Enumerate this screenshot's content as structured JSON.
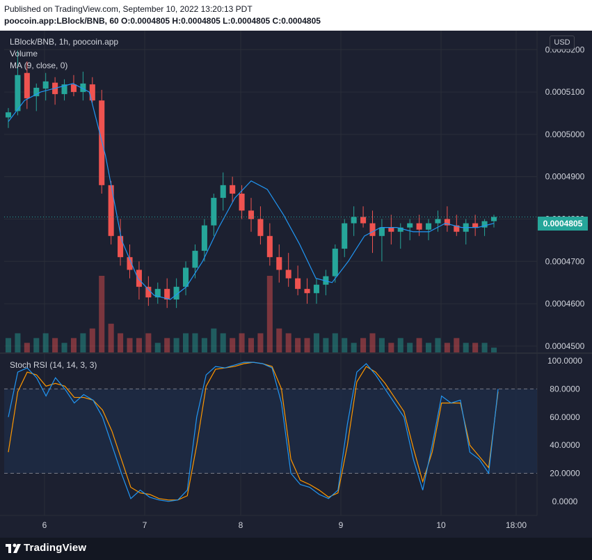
{
  "header": {
    "published": "Published on TradingView.com, September 10, 2022 13:20:13 PDT",
    "symbol_line": "poocoin.app:LBlock/BNB, 60",
    "ohlc": "O:0.0004805 H:0.0004805 L:0.0004805 C:0.0004805"
  },
  "legend": {
    "title": "LBlock/BNB, 1h, poocoin.app",
    "volume": "Volume",
    "ma": "MA (9, close, 0)",
    "rsi": "Stoch RSI (14, 14, 3, 3)"
  },
  "currency_button": "USD",
  "last_price": "0.0004805",
  "footer": {
    "brand": "TradingView"
  },
  "colors": {
    "up": "#26a69a",
    "down": "#ef5350",
    "ma_line": "#2196f3",
    "k_line": "#2196f3",
    "d_line": "#ff9800",
    "background": "#1c2030"
  },
  "chart_data": [
    {
      "type": "candlestick",
      "title": "LBlock/BNB, 1h, poocoin.app",
      "x_tick_labels": [
        "6",
        "7",
        "8",
        "9",
        "10",
        "18:00"
      ],
      "y_tick_labels": [
        "0.0005200",
        "0.0005100",
        "0.0005000",
        "0.0004900",
        "0.0004800",
        "0.0004700",
        "0.0004600",
        "0.0004500"
      ],
      "ylim": [
        0.0004485,
        0.0005235
      ],
      "last_price": 0.0004805,
      "series": [
        {
          "name": "MA (9, close, 0)",
          "values": [
            0.000503,
            0.000508,
            0.00051,
            0.000511,
            0.000512,
            0.00051,
            0.000495,
            0.000475,
            0.000466,
            0.000462,
            0.000461,
            0.000464,
            0.00047,
            0.000478,
            0.000485,
            0.000489,
            0.000487,
            0.000481,
            0.000474,
            0.000466,
            0.000465,
            0.00047,
            0.000476,
            0.000478,
            0.000478,
            0.000477,
            0.000477,
            0.000479,
            0.000478,
            0.000478,
            0.000479
          ]
        }
      ],
      "candles": [
        [
          0.000504,
          0.0005062,
          0.0005015,
          0.0005052
        ],
        [
          0.0005055,
          0.0005198,
          0.0005045,
          0.000514
        ],
        [
          0.0005145,
          0.0005172,
          0.000506,
          0.0005085
        ],
        [
          0.000509,
          0.000512,
          0.0005055,
          0.000511
        ],
        [
          0.0005108,
          0.0005145,
          0.000508,
          0.0005125
        ],
        [
          0.0005122,
          0.0005135,
          0.000507,
          0.0005095
        ],
        [
          0.0005095,
          0.000513,
          0.000508,
          0.0005118
        ],
        [
          0.0005118,
          0.000514,
          0.000509,
          0.00051
        ],
        [
          0.00051,
          0.0005148,
          0.000508,
          0.000512
        ],
        [
          0.0005118,
          0.0005135,
          0.0005075,
          0.000508
        ],
        [
          0.000508,
          0.0005105,
          0.000486,
          0.000488
        ],
        [
          0.000488,
          0.000489,
          0.000474,
          0.000476
        ],
        [
          0.000476,
          0.00048,
          0.000469,
          0.000471
        ],
        [
          0.000471,
          0.000474,
          0.000466,
          0.000468
        ],
        [
          0.000468,
          0.00047,
          0.000461,
          0.000464
        ],
        [
          0.000464,
          0.0004665,
          0.0004595,
          0.0004615
        ],
        [
          0.0004615,
          0.000465,
          0.00046,
          0.0004635
        ],
        [
          0.0004635,
          0.000466,
          0.000459,
          0.000461
        ],
        [
          0.000461,
          0.000466,
          0.000459,
          0.000464
        ],
        [
          0.000464,
          0.00047,
          0.000462,
          0.0004685
        ],
        [
          0.0004685,
          0.000474,
          0.000466,
          0.0004725
        ],
        [
          0.0004725,
          0.00048,
          0.00047,
          0.0004785
        ],
        [
          0.0004785,
          0.000486,
          0.000476,
          0.000485
        ],
        [
          0.000485,
          0.000491,
          0.000482,
          0.000488
        ],
        [
          0.000488,
          0.00049,
          0.000484,
          0.000486
        ],
        [
          0.000486,
          0.000488,
          0.00048,
          0.000482
        ],
        [
          0.000482,
          0.000485,
          0.000477,
          0.00048
        ],
        [
          0.00048,
          0.000483,
          0.000474,
          0.000476
        ],
        [
          0.000476,
          0.000479,
          0.000469,
          0.000471
        ],
        [
          0.000471,
          0.000474,
          0.000465,
          0.000468
        ],
        [
          0.000468,
          0.000472,
          0.000464,
          0.000466
        ],
        [
          0.000466,
          0.000469,
          0.000462,
          0.0004635
        ],
        [
          0.0004635,
          0.000466,
          0.00046,
          0.0004625
        ],
        [
          0.0004625,
          0.000466,
          0.00046,
          0.0004645
        ],
        [
          0.0004645,
          0.000468,
          0.000462,
          0.0004665
        ],
        [
          0.0004665,
          0.000474,
          0.000465,
          0.000473
        ],
        [
          0.000473,
          0.00048,
          0.000471,
          0.000479
        ],
        [
          0.000479,
          0.000483,
          0.000476,
          0.0004805
        ],
        [
          0.0004805,
          0.000483,
          0.000478,
          0.000479
        ],
        [
          0.000479,
          0.000482,
          0.000472,
          0.000476
        ],
        [
          0.000476,
          0.00048,
          0.00047,
          0.000478
        ],
        [
          0.000478,
          0.000481,
          0.000474,
          0.000477
        ],
        [
          0.000477,
          0.000479,
          0.000473,
          0.000478
        ],
        [
          0.000478,
          0.00048,
          0.000475,
          0.000479
        ],
        [
          0.000479,
          0.000481,
          0.000476,
          0.0004775
        ],
        [
          0.0004775,
          0.00048,
          0.000475,
          0.000479
        ],
        [
          0.000479,
          0.000482,
          0.000477,
          0.00048
        ],
        [
          0.00048,
          0.000483,
          0.000477,
          0.0004785
        ],
        [
          0.0004785,
          0.000481,
          0.000476,
          0.000477
        ],
        [
          0.000477,
          0.00048,
          0.000474,
          0.000479
        ],
        [
          0.000479,
          0.000481,
          0.000476,
          0.000478
        ],
        [
          0.000478,
          0.00048,
          0.000476,
          0.0004795
        ],
        [
          0.0004795,
          0.000481,
          0.000478,
          0.0004805
        ]
      ],
      "volume": [
        3,
        4,
        2,
        3,
        4,
        3,
        2,
        3,
        4,
        5,
        16,
        6,
        4,
        3,
        3,
        4,
        2,
        3,
        3,
        4,
        4,
        3,
        5,
        4,
        3,
        4,
        3,
        4,
        16,
        5,
        4,
        3,
        3,
        4,
        3,
        4,
        3,
        2,
        3,
        4,
        3,
        2,
        3,
        2,
        3,
        2,
        3,
        2,
        3,
        2,
        2,
        2,
        1
      ]
    },
    {
      "type": "line",
      "title": "Stoch RSI (14, 14, 3, 3)",
      "y_tick_labels": [
        "100.0000",
        "80.0000",
        "60.0000",
        "40.0000",
        "20.0000",
        "0.0000"
      ],
      "ylim": [
        -10,
        105
      ],
      "bands": [
        20,
        80
      ],
      "series": [
        {
          "name": "K",
          "values": [
            60,
            92,
            95,
            88,
            75,
            88,
            80,
            70,
            76,
            72,
            60,
            40,
            20,
            2,
            8,
            3,
            1,
            0,
            1,
            8,
            60,
            90,
            96,
            95,
            97,
            99,
            99,
            98,
            95,
            70,
            20,
            12,
            10,
            5,
            2,
            8,
            55,
            92,
            98,
            90,
            80,
            70,
            60,
            30,
            8,
            40,
            75,
            70,
            72,
            35,
            30,
            20,
            80
          ]
        },
        {
          "name": "D",
          "values": [
            35,
            78,
            92,
            90,
            82,
            84,
            82,
            74,
            74,
            72,
            65,
            50,
            30,
            10,
            6,
            5,
            2,
            1,
            1,
            4,
            40,
            82,
            94,
            95,
            96,
            98,
            99,
            98,
            96,
            80,
            30,
            15,
            12,
            8,
            3,
            6,
            40,
            85,
            96,
            92,
            84,
            74,
            64,
            38,
            14,
            35,
            70,
            70,
            70,
            40,
            32,
            24,
            78
          ]
        }
      ]
    }
  ]
}
